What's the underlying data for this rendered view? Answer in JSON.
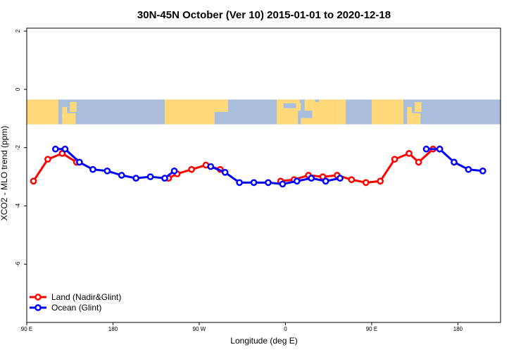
{
  "chart_data": {
    "type": "line",
    "title": "30N-45N October (Ver 10)   2015-01-01 to 2020-12-18",
    "xlabel": "Longitude (deg E)",
    "ylabel": "XCO2 - MLO trend (ppm)",
    "xlim": [
      90,
      450
    ],
    "ylim": [
      -8,
      2
    ],
    "x_ticks": [
      {
        "value": 90,
        "label": "90 E"
      },
      {
        "value": 180,
        "label": "180"
      },
      {
        "value": 270,
        "label": "90 W"
      },
      {
        "value": 360,
        "label": "0"
      },
      {
        "value": 450,
        "label": "90 E"
      },
      {
        "value": 540,
        "label": "180"
      }
    ],
    "y_ticks": [
      {
        "value": 2,
        "label": "2"
      },
      {
        "value": 0,
        "label": "0"
      },
      {
        "value": -2,
        "label": "-2"
      },
      {
        "value": -4,
        "label": "-4"
      },
      {
        "value": -6,
        "label": "-6"
      }
    ],
    "map_band": {
      "ymin": -1.2,
      "ymax": -0.35,
      "land_color": "#FFD97A",
      "ocean_color": "#A8BEDC"
    },
    "grid": false,
    "legend_position": "bottom-left",
    "series": [
      {
        "name": "Land (Nadir&Glint)",
        "color": "#FF0000",
        "segments": [
          {
            "x": [
              97,
              112,
              127,
              142
            ],
            "y": [
              -3.15,
              -2.4,
              -2.2,
              -2.5
            ]
          },
          {
            "x": [
              238,
              247,
              262,
              277,
              292
            ],
            "y": [
              -3.05,
              -2.9,
              -2.75,
              -2.6,
              -2.75
            ]
          },
          {
            "x": [
              355,
              369,
              384,
              399,
              414,
              429,
              444,
              459,
              474,
              489,
              499,
              514,
              521
            ],
            "y": [
              -3.15,
              -3.1,
              -2.95,
              -3.0,
              -2.95,
              -3.1,
              -3.2,
              -3.15,
              -2.4,
              -2.2,
              -2.5,
              -2.05,
              -2.05
            ]
          }
        ]
      },
      {
        "name": "Ocean (Glint)",
        "color": "#0000FF",
        "segments": [
          {
            "x": [
              120,
              130,
              145,
              159,
              174,
              189,
              204,
              219,
              234,
              244
            ],
            "y": [
              -2.05,
              -2.05,
              -2.5,
              -2.75,
              -2.8,
              -2.95,
              -3.05,
              -3.0,
              -3.05,
              -2.8
            ]
          },
          {
            "x": [
              282,
              297,
              312,
              327,
              342,
              357,
              372,
              387,
              402
            ],
            "y": [
              -2.65,
              -2.85,
              -3.2,
              -3.2,
              -3.2,
              -3.25,
              -3.15,
              -3.05,
              -3.15
            ]
          },
          {
            "x": [
              402,
              417
            ],
            "y": [
              -3.15,
              -3.05
            ]
          },
          {
            "x": [
              507,
              521,
              536,
              551,
              566
            ],
            "y": [
              -2.05,
              -2.05,
              -2.5,
              -2.75,
              -2.8
            ]
          }
        ]
      }
    ]
  }
}
